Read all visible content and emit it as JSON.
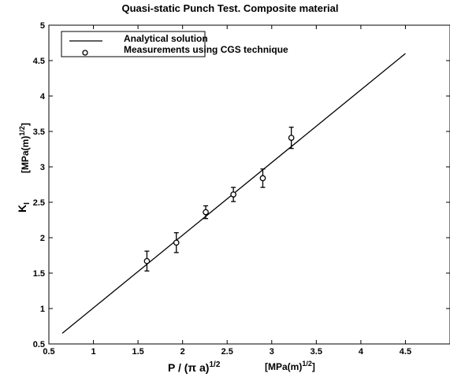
{
  "chart_data": {
    "type": "scatter",
    "title": "Quasi-static Punch Test. Composite material",
    "xlabel": {
      "main": "P / (π a)",
      "exp": "1/2",
      "unit": "[MPa(m)",
      "unit_exp": "1/2",
      "unit_close": "]"
    },
    "ylabel": {
      "main": "K",
      "sub": "I",
      "unit": "[MPa(m)",
      "unit_exp": "1/2",
      "unit_close": "]"
    },
    "xlim": [
      0.5,
      5
    ],
    "ylim": [
      0.5,
      5
    ],
    "xticks": [
      0.5,
      1,
      1.5,
      2,
      2.5,
      3,
      3.5,
      4,
      4.5
    ],
    "yticks": [
      0.5,
      1,
      1.5,
      2,
      2.5,
      3,
      3.5,
      4,
      4.5,
      5
    ],
    "xtick_labels": [
      "0.5",
      "1",
      "1.5",
      "2",
      "2.5",
      "3",
      "3.5",
      "4",
      "4.5"
    ],
    "ytick_labels": [
      "0.5",
      "1",
      "1.5",
      "2",
      "2.5",
      "3",
      "3.5",
      "4",
      "4.5",
      "5"
    ],
    "grid": false,
    "legend_position": "top-left",
    "series": [
      {
        "name": "Analytical solution",
        "type": "line",
        "x": [
          0.65,
          4.5
        ],
        "y": [
          0.65,
          4.6
        ]
      },
      {
        "name": "Measurements using CGS technique",
        "type": "scatter-errorbar",
        "x": [
          1.6,
          1.93,
          2.26,
          2.57,
          2.9,
          3.22
        ],
        "y": [
          1.67,
          1.93,
          2.36,
          2.61,
          2.84,
          3.41
        ],
        "err": [
          0.14,
          0.14,
          0.09,
          0.1,
          0.13,
          0.15
        ]
      }
    ]
  }
}
